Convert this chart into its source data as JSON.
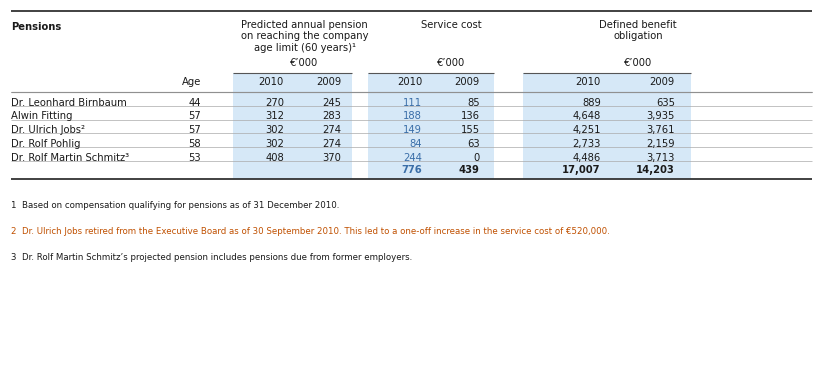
{
  "title": "Pensions",
  "rows": [
    [
      "Dr. Leonhard Birnbaum",
      "44",
      "270",
      "245",
      "111",
      "85",
      "889",
      "635"
    ],
    [
      "Alwin Fitting",
      "57",
      "312",
      "283",
      "188",
      "136",
      "4,648",
      "3,935"
    ],
    [
      "Dr. Ulrich Jobs²",
      "57",
      "302",
      "274",
      "149",
      "155",
      "4,251",
      "3,761"
    ],
    [
      "Dr. Rolf Pohlig",
      "58",
      "302",
      "274",
      "84",
      "63",
      "2,733",
      "2,159"
    ],
    [
      "Dr. Rolf Martin Schmitz³",
      "53",
      "408",
      "370",
      "244",
      "0",
      "4,486",
      "3,713"
    ]
  ],
  "totals_2010b": "776",
  "totals_2009b": "439",
  "totals_2010c": "17,007",
  "totals_2009c": "14,203",
  "footnotes": [
    [
      "1",
      "  Based on compensation qualifying for pensions as of 31 December 2010.",
      "black"
    ],
    [
      "2",
      "  Dr. Ulrich Jobs retired from the Executive Board as of 30 September 2010. This led to a one-off increase in the service cost of €520,000.",
      "orange"
    ],
    [
      "3",
      "  Dr. Rolf Martin Schmitz’s projected pension includes pensions due from former employers.",
      "black"
    ]
  ],
  "highlight_color": "#d6e8f7",
  "text_blue": "#3a6ea8",
  "text_black": "#1a1a1a",
  "text_orange": "#c05000",
  "font_size": 7.2,
  "font_size_small": 6.2,
  "font_size_header": 7.2
}
